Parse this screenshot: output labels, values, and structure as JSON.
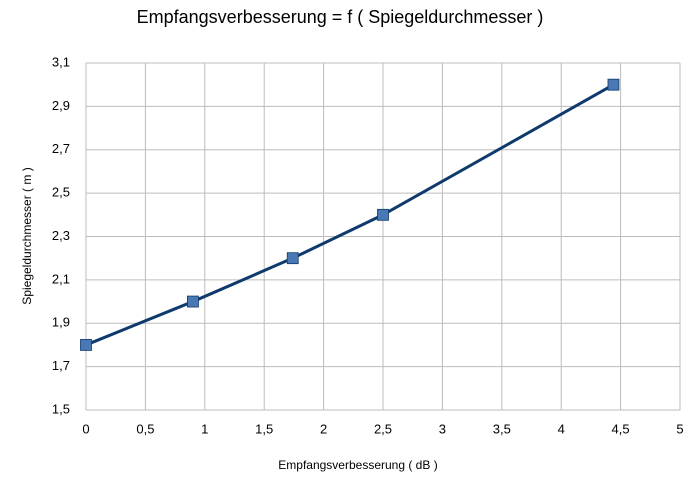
{
  "chart_data": {
    "type": "line",
    "title": "Empfangsverbesserung = f ( Spiegeldurchmesser )",
    "x_label": "Empfangsverbesserung  ( dB )",
    "y_label": "Spiegeldurchmesser  ( m )",
    "x": [
      0,
      0.9,
      1.74,
      2.5,
      4.44
    ],
    "values": [
      1.8,
      2.0,
      2.2,
      2.4,
      3.0
    ],
    "color": "#0e3a6d",
    "marker_color": "#4a78b5",
    "xlim": [
      0,
      5
    ],
    "xticks": [
      0,
      {
        "value": 0.5,
        "label": "0,5"
      },
      1,
      {
        "value": 1.5,
        "label": "1,5"
      },
      2,
      {
        "value": 2.5,
        "label": "2,5"
      },
      3,
      {
        "value": 3.5,
        "label": "3,5"
      },
      4,
      {
        "value": 4.5,
        "label": "4,5"
      },
      5
    ],
    "ylim": [
      1.5,
      3.1
    ],
    "yticks": [
      {
        "value": 1.5,
        "label": "1,5"
      },
      {
        "value": 1.7,
        "label": "1,7"
      },
      {
        "value": 1.9,
        "label": "1,9"
      },
      {
        "value": 2.1,
        "label": "2,1"
      },
      {
        "value": 2.3,
        "label": "2,3"
      },
      {
        "value": 2.5,
        "label": "2,5"
      },
      {
        "value": 2.7,
        "label": "2,7"
      },
      {
        "value": 2.9,
        "label": "2,9"
      },
      {
        "value": 3.1,
        "label": "3,1"
      }
    ],
    "grid": true
  }
}
